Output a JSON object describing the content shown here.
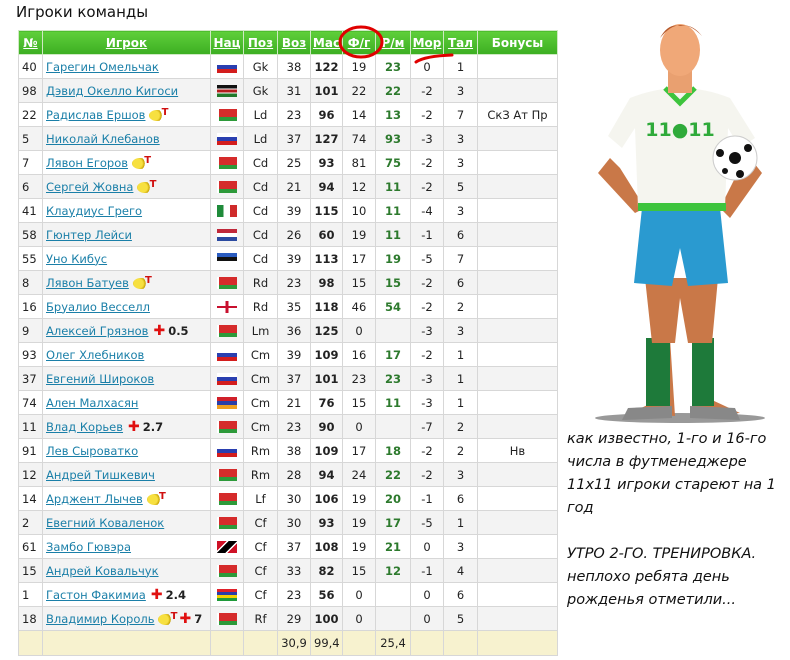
{
  "page_title": "Игроки команды",
  "columns": [
    "№",
    "Игрок",
    "Нац",
    "Поз",
    "Воз",
    "Мас",
    "Ф/г",
    "Р/м",
    "Мор",
    "Тал",
    "Бонусы"
  ],
  "rows": [
    {
      "num": "40",
      "name": "Гарегин Омельчак",
      "flag": "ru",
      "pos": "Gk",
      "age": "38",
      "mas": "122",
      "fg": "19",
      "rm": "23",
      "mor": "0",
      "tal": "1",
      "bonus": "",
      "coin": false,
      "injury": ""
    },
    {
      "num": "98",
      "name": "Дэвид Окелло Кигоси",
      "flag": "ke",
      "pos": "Gk",
      "age": "31",
      "mas": "101",
      "fg": "22",
      "rm": "22",
      "mor": "-2",
      "tal": "3",
      "bonus": "",
      "coin": false,
      "injury": ""
    },
    {
      "num": "22",
      "name": "Радислав Ершов",
      "flag": "by",
      "pos": "Ld",
      "age": "23",
      "mas": "96",
      "fg": "14",
      "rm": "13",
      "mor": "-2",
      "tal": "7",
      "bonus": "СкЗ Ат Пр",
      "coin": true,
      "injury": ""
    },
    {
      "num": "5",
      "name": "Николай Клебанов",
      "flag": "ru",
      "pos": "Ld",
      "age": "37",
      "mas": "127",
      "fg": "74",
      "rm": "93",
      "mor": "-3",
      "tal": "3",
      "bonus": "",
      "coin": false,
      "injury": ""
    },
    {
      "num": "7",
      "name": "Лявон Егоров",
      "flag": "by",
      "pos": "Cd",
      "age": "25",
      "mas": "93",
      "fg": "81",
      "rm": "75",
      "mor": "-2",
      "tal": "3",
      "bonus": "",
      "coin": true,
      "injury": ""
    },
    {
      "num": "6",
      "name": "Сергей Жовна",
      "flag": "by",
      "pos": "Cd",
      "age": "21",
      "mas": "94",
      "fg": "12",
      "rm": "11",
      "mor": "-2",
      "tal": "5",
      "bonus": "",
      "coin": true,
      "injury": ""
    },
    {
      "num": "41",
      "name": "Клаудиус Грего",
      "flag": "it",
      "pos": "Cd",
      "age": "39",
      "mas": "115",
      "fg": "10",
      "rm": "11",
      "mor": "-4",
      "tal": "3",
      "bonus": "",
      "coin": false,
      "injury": ""
    },
    {
      "num": "58",
      "name": "Гюнтер Лейси",
      "flag": "nl",
      "pos": "Cd",
      "age": "26",
      "mas": "60",
      "fg": "19",
      "rm": "11",
      "mor": "-1",
      "tal": "6",
      "bonus": "",
      "coin": false,
      "injury": ""
    },
    {
      "num": "55",
      "name": "Уно Кибус",
      "flag": "ee",
      "pos": "Cd",
      "age": "39",
      "mas": "113",
      "fg": "17",
      "rm": "19",
      "mor": "-5",
      "tal": "7",
      "bonus": "",
      "coin": false,
      "injury": ""
    },
    {
      "num": "8",
      "name": "Лявон Батуев",
      "flag": "by",
      "pos": "Rd",
      "age": "23",
      "mas": "98",
      "fg": "15",
      "rm": "15",
      "mor": "-2",
      "tal": "6",
      "bonus": "",
      "coin": true,
      "injury": ""
    },
    {
      "num": "16",
      "name": "Бруалио Весселл",
      "flag": "en",
      "pos": "Rd",
      "age": "35",
      "mas": "118",
      "fg": "46",
      "rm": "54",
      "mor": "-2",
      "tal": "2",
      "bonus": "",
      "coin": false,
      "injury": ""
    },
    {
      "num": "9",
      "name": "Алексей Грязнов",
      "flag": "by",
      "pos": "Lm",
      "age": "36",
      "mas": "125",
      "fg": "0",
      "rm": "",
      "mor": "-3",
      "tal": "3",
      "bonus": "",
      "coin": false,
      "injury": "0.5"
    },
    {
      "num": "93",
      "name": "Олег Хлебников",
      "flag": "ru",
      "pos": "Cm",
      "age": "39",
      "mas": "109",
      "fg": "16",
      "rm": "17",
      "mor": "-2",
      "tal": "1",
      "bonus": "",
      "coin": false,
      "injury": ""
    },
    {
      "num": "37",
      "name": "Евгений Широков",
      "flag": "ru",
      "pos": "Cm",
      "age": "37",
      "mas": "101",
      "fg": "23",
      "rm": "23",
      "mor": "-3",
      "tal": "1",
      "bonus": "",
      "coin": false,
      "injury": ""
    },
    {
      "num": "74",
      "name": "Ален Малхасян",
      "flag": "am",
      "pos": "Cm",
      "age": "21",
      "mas": "76",
      "fg": "15",
      "rm": "11",
      "mor": "-3",
      "tal": "1",
      "bonus": "",
      "coin": false,
      "injury": ""
    },
    {
      "num": "11",
      "name": "Влад Корьев",
      "flag": "by",
      "pos": "Cm",
      "age": "23",
      "mas": "90",
      "fg": "0",
      "rm": "",
      "mor": "-7",
      "tal": "2",
      "bonus": "",
      "coin": false,
      "injury": "2.7"
    },
    {
      "num": "91",
      "name": "Лев Сыроватко",
      "flag": "ru",
      "pos": "Rm",
      "age": "38",
      "mas": "109",
      "fg": "17",
      "rm": "18",
      "mor": "-2",
      "tal": "2",
      "bonus": "Нв",
      "coin": false,
      "injury": ""
    },
    {
      "num": "12",
      "name": "Андрей Тишкевич",
      "flag": "by",
      "pos": "Rm",
      "age": "28",
      "mas": "94",
      "fg": "24",
      "rm": "22",
      "mor": "-2",
      "tal": "3",
      "bonus": "",
      "coin": false,
      "injury": ""
    },
    {
      "num": "14",
      "name": "Арджент Лычев",
      "flag": "by",
      "pos": "Lf",
      "age": "30",
      "mas": "106",
      "fg": "19",
      "rm": "20",
      "mor": "-1",
      "tal": "6",
      "bonus": "",
      "coin": true,
      "injury": ""
    },
    {
      "num": "2",
      "name": "Евегний Коваленок",
      "flag": "by",
      "pos": "Cf",
      "age": "30",
      "mas": "93",
      "fg": "19",
      "rm": "17",
      "mor": "-5",
      "tal": "1",
      "bonus": "",
      "coin": false,
      "injury": ""
    },
    {
      "num": "61",
      "name": "Замбо Гювэра",
      "flag": "tt",
      "pos": "Cf",
      "age": "37",
      "mas": "108",
      "fg": "19",
      "rm": "21",
      "mor": "0",
      "tal": "3",
      "bonus": "",
      "coin": false,
      "injury": ""
    },
    {
      "num": "15",
      "name": "Андрей Ковальчук",
      "flag": "by",
      "pos": "Cf",
      "age": "33",
      "mas": "82",
      "fg": "15",
      "rm": "12",
      "mor": "-1",
      "tal": "4",
      "bonus": "",
      "coin": false,
      "injury": ""
    },
    {
      "num": "1",
      "name": "Гастон Факимиа",
      "flag": "mu",
      "pos": "Cf",
      "age": "23",
      "mas": "56",
      "fg": "0",
      "rm": "",
      "mor": "0",
      "tal": "6",
      "bonus": "",
      "coin": false,
      "injury": "2.4"
    },
    {
      "num": "18",
      "name": "Владимир Король",
      "flag": "by",
      "pos": "Rf",
      "age": "29",
      "mas": "100",
      "fg": "0",
      "rm": "",
      "mor": "0",
      "tal": "5",
      "bonus": "",
      "coin": true,
      "injury": "7"
    }
  ],
  "totals": {
    "age": "30,9",
    "mas": "99,4",
    "rm": "25,4"
  },
  "side_text": {
    "p1": "как известно, 1-го и 16-го числа в футменеджере 11х11 игроки стареют на 1 год",
    "p2": "УТРО 2-ГО. ТРЕНИРОВКА. неплохо ребята день рожденья отметили..."
  },
  "shirt_logo": "11●11",
  "colors": {
    "header_green": "#3cae22",
    "link": "#1a7fa8",
    "rm_green": "#2d7a2d",
    "annotation": "#e00000",
    "totals_bg": "#f7f2cf"
  }
}
